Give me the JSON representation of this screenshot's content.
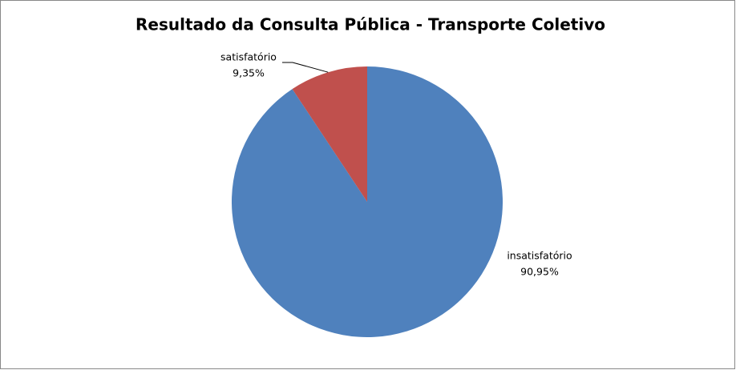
{
  "chart_data": {
    "type": "pie",
    "title": "Resultado da Consulta Pública - Transporte Coletivo",
    "categories": [
      "insatisfatório",
      "satisfatório"
    ],
    "values": [
      90.95,
      9.35
    ],
    "value_labels": [
      "90,95%",
      "9,35%"
    ],
    "colors": [
      "#4f81bd",
      "#c0504d"
    ]
  }
}
